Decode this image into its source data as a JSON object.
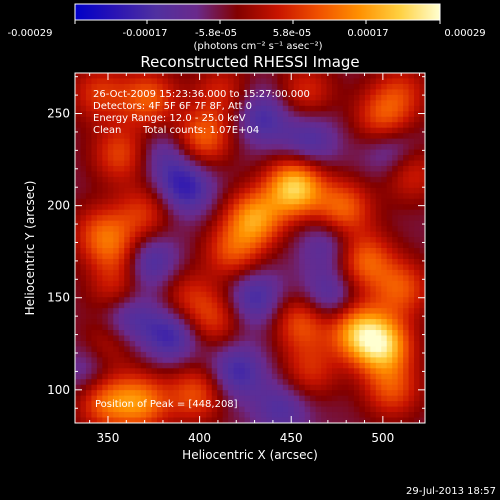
{
  "chart_data": {
    "type": "heatmap",
    "title": "Reconstructed RHESSI Image",
    "xlabel": "Heliocentric X (arcsec)",
    "ylabel": "Heliocentric Y (arcsec)",
    "xlim": [
      332,
      523
    ],
    "ylim": [
      82,
      272
    ],
    "x_ticks": [
      350,
      400,
      450,
      500
    ],
    "y_ticks": [
      100,
      150,
      200,
      250
    ],
    "colorbar": {
      "ticks": [
        "-0.00029",
        "-0.00017",
        "-5.8e-05",
        "5.8e-05",
        "0.00017",
        "0.00029"
      ],
      "units": "(photons cm⁻² s⁻¹ asec⁻²)",
      "range": [
        -0.00029,
        0.00029
      ],
      "colormap": [
        "#0000c8",
        "#2a14b4",
        "#5030a0",
        "#6a2a8c",
        "#820000",
        "#c81400",
        "#f05000",
        "#ff9000",
        "#ffd040",
        "#ffffd0"
      ]
    },
    "annotations": [
      "26-Oct-2009 15:23:36.000 to 15:27:00.000",
      "Detectors: 4F 5F 6F 7F 8F, Att 0",
      "Energy Range: 12.0 - 25.0 keV",
      "Clean",
      "Total counts: 1.07E+04",
      "Position of Peak = [448,208]"
    ],
    "peak": [
      448,
      208
    ],
    "features": [
      {
        "x": 452,
        "y": 210,
        "value": 0.00029
      },
      {
        "x": 430,
        "y": 193,
        "value": 0.00022
      },
      {
        "x": 478,
        "y": 198,
        "value": 0.00018
      },
      {
        "x": 418,
        "y": 175,
        "value": 0.00014
      },
      {
        "x": 402,
        "y": 237,
        "value": 0.00017
      },
      {
        "x": 372,
        "y": 258,
        "value": 0.00016
      },
      {
        "x": 357,
        "y": 228,
        "value": 0.00014
      },
      {
        "x": 345,
        "y": 261,
        "value": 0.00012
      },
      {
        "x": 370,
        "y": 196,
        "value": 0.00012
      },
      {
        "x": 346,
        "y": 185,
        "value": 0.00013
      },
      {
        "x": 356,
        "y": 175,
        "value": 0.00011
      },
      {
        "x": 355,
        "y": 153,
        "value": 0.00012
      },
      {
        "x": 393,
        "y": 150,
        "value": 0.0001
      },
      {
        "x": 408,
        "y": 138,
        "value": 0.00012
      },
      {
        "x": 456,
        "y": 137,
        "value": 0.00016
      },
      {
        "x": 486,
        "y": 132,
        "value": 0.00022
      },
      {
        "x": 500,
        "y": 124,
        "value": 0.00026
      },
      {
        "x": 460,
        "y": 110,
        "value": 0.00011
      },
      {
        "x": 505,
        "y": 100,
        "value": 0.00014
      },
      {
        "x": 490,
        "y": 170,
        "value": 0.00017
      },
      {
        "x": 510,
        "y": 155,
        "value": 0.00015
      },
      {
        "x": 500,
        "y": 247,
        "value": 0.00015
      },
      {
        "x": 515,
        "y": 218,
        "value": 0.00012
      },
      {
        "x": 510,
        "y": 262,
        "value": 0.0001
      },
      {
        "x": 458,
        "y": 262,
        "value": 0.00011
      },
      {
        "x": 412,
        "y": 262,
        "value": 0.0001
      },
      {
        "x": 348,
        "y": 94,
        "value": 0.00017
      },
      {
        "x": 368,
        "y": 93,
        "value": 0.00019
      },
      {
        "x": 398,
        "y": 98,
        "value": 0.00015
      },
      {
        "x": 350,
        "y": 125,
        "value": 0.0001
      },
      {
        "x": 434,
        "y": 248,
        "value": -0.00012
      },
      {
        "x": 392,
        "y": 210,
        "value": -0.00015
      },
      {
        "x": 372,
        "y": 170,
        "value": -0.00014
      },
      {
        "x": 430,
        "y": 150,
        "value": -0.00013
      },
      {
        "x": 385,
        "y": 130,
        "value": -0.00014
      },
      {
        "x": 470,
        "y": 150,
        "value": -0.00012
      },
      {
        "x": 420,
        "y": 110,
        "value": -0.00013
      },
      {
        "x": 470,
        "y": 180,
        "value": -0.0001
      },
      {
        "x": 505,
        "y": 230,
        "value": -0.00011
      },
      {
        "x": 360,
        "y": 140,
        "value": -0.00014
      },
      {
        "x": 460,
        "y": 235,
        "value": -0.00011
      },
      {
        "x": 380,
        "y": 228,
        "value": -8e-05
      },
      {
        "x": 340,
        "y": 110,
        "value": -9e-05
      },
      {
        "x": 445,
        "y": 90,
        "value": -0.0001
      }
    ]
  },
  "footer": {
    "timestamp": "29-Jul-2013 18:57"
  }
}
